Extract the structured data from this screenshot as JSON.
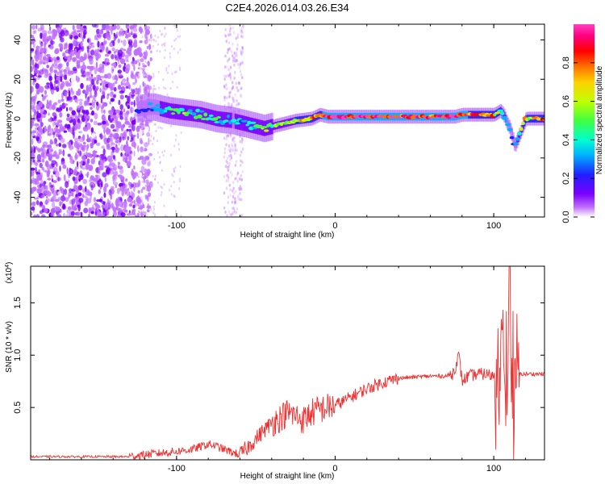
{
  "title": "C2E4.2026.014.03.26.E34",
  "chart_data": [
    {
      "type": "heatmap",
      "name": "spectrogram",
      "xlabel": "Height of straight line (km)",
      "ylabel": "Frequency (Hz)",
      "xlim": [
        -192,
        132
      ],
      "ylim": [
        -50,
        48
      ],
      "xticks": [
        -100,
        0,
        100
      ],
      "yticks": [
        -40,
        -20,
        0,
        20,
        40
      ],
      "colorbar": {
        "label": "Normalized spectral amplitude",
        "range": [
          0,
          1
        ],
        "ticks": [
          0.0,
          0.2,
          0.4,
          0.6,
          0.8
        ],
        "tick_labels": [
          "0.0",
          "0.2",
          "0.4",
          "0.6",
          "0.8"
        ],
        "colormap": [
          "#ffffff",
          "#c070ff",
          "#7a00ff",
          "#2020ff",
          "#00b0ff",
          "#00ffd0",
          "#40ff40",
          "#c0ff00",
          "#ffd000",
          "#ff7000",
          "#ff0000",
          "#ff0080",
          "#ff40c0"
        ]
      },
      "noise_region_km": [
        -192,
        -122
      ],
      "secondary_noise_region_km": [
        -70,
        -58
      ],
      "ridge": {
        "x": [
          -125,
          -115,
          -105,
          -95,
          -85,
          -75,
          -65,
          -55,
          -45,
          -35,
          -25,
          -15,
          -10,
          -5,
          0,
          20,
          40,
          60,
          75,
          80,
          90,
          100,
          104,
          106,
          108,
          110,
          113,
          120,
          132
        ],
        "y": [
          5,
          6,
          4,
          3,
          2,
          0,
          -1,
          -3,
          -5,
          -3,
          -1,
          0,
          2,
          1,
          1,
          1,
          1,
          1,
          1,
          2,
          2,
          2,
          4,
          2,
          -2,
          -5,
          -14,
          0,
          0
        ],
        "amplitude": [
          0.2,
          0.3,
          0.45,
          0.5,
          0.45,
          0.45,
          0.35,
          0.4,
          0.5,
          0.55,
          0.6,
          0.7,
          0.8,
          0.9,
          0.95,
          0.95,
          0.9,
          0.9,
          0.9,
          0.85,
          0.8,
          0.7,
          0.6,
          0.4,
          0.35,
          0.3,
          0.3,
          0.7,
          0.7
        ]
      }
    },
    {
      "type": "line",
      "name": "snr",
      "xlabel": "Height of straight line (km)",
      "ylabel": "SNR (10 * v/v)",
      "scale_label": "(x10",
      "scale_exponent": "4",
      "scale_suffix": ")",
      "xlim": [
        -192,
        132
      ],
      "ylim": [
        0,
        1.85
      ],
      "xticks": [
        -100,
        0,
        100
      ],
      "yticks": [
        0.5,
        1.0,
        1.5
      ],
      "ytick_labels": [
        "0.5",
        "1.0",
        "1.5"
      ],
      "color": "#f03030",
      "series": {
        "x": [
          -192,
          -130,
          -120,
          -100,
          -90,
          -80,
          -75,
          -70,
          -65,
          -60,
          -55,
          -50,
          -45,
          -40,
          -35,
          -30,
          -25,
          -20,
          -15,
          -10,
          -5,
          0,
          10,
          20,
          30,
          40,
          50,
          60,
          70,
          74,
          76,
          78,
          80,
          84,
          90,
          95,
          100,
          104,
          106,
          108,
          110,
          112,
          114,
          116,
          120,
          132
        ],
        "y": [
          0.03,
          0.03,
          0.05,
          0.08,
          0.1,
          0.15,
          0.13,
          0.1,
          0.07,
          0.05,
          0.12,
          0.2,
          0.28,
          0.35,
          0.4,
          0.45,
          0.42,
          0.38,
          0.45,
          0.48,
          0.5,
          0.52,
          0.6,
          0.68,
          0.74,
          0.78,
          0.79,
          0.8,
          0.8,
          0.82,
          0.9,
          1.0,
          0.75,
          0.8,
          0.82,
          0.82,
          0.8,
          0.9,
          1.3,
          0.6,
          1.8,
          0.2,
          1.1,
          0.82,
          0.82,
          0.82
        ]
      }
    }
  ]
}
